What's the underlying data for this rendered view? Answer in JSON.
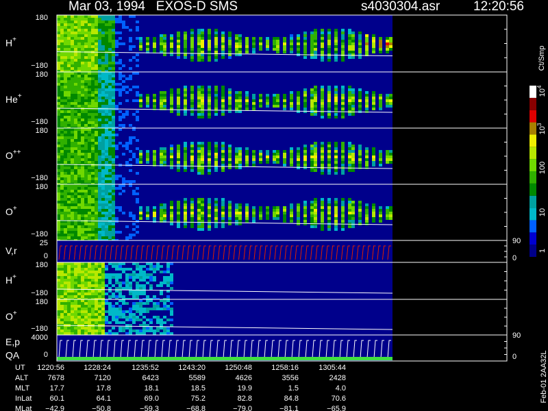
{
  "header": {
    "title": "Mar 03, 1994   EXOS-D SMS",
    "file": "s4030304.asr",
    "time": "12:20:56"
  },
  "panels": [
    {
      "label": "H",
      "sup": "+",
      "top": "180",
      "bottom": "−180"
    },
    {
      "label": "He",
      "sup": "+",
      "top": "180",
      "bottom": "−180"
    },
    {
      "label": "O",
      "sup": "++",
      "top": "180",
      "bottom": "−180"
    },
    {
      "label": "O",
      "sup": "+",
      "top": "180",
      "bottom": "−180"
    },
    {
      "label": "V,r",
      "top": "25",
      "bottom": "0",
      "right_top": "90",
      "right_bottom": "0"
    },
    {
      "label": "H",
      "sup": "+",
      "top": "180",
      "bottom": "−180"
    },
    {
      "label": "O",
      "sup": "+",
      "top": "180",
      "bottom": "−180"
    },
    {
      "label": "E,p",
      "label2": "QA",
      "top": "4000",
      "bottom": "0",
      "right_top": "90",
      "right_bottom": "0"
    }
  ],
  "colorbar": {
    "unit": "Ct/Smp",
    "labels": [
      {
        "text": "10",
        "sup": "4"
      },
      {
        "text": "10",
        "sup": "3"
      },
      {
        "text": "100"
      },
      {
        "text": "10"
      },
      {
        "text": "1"
      }
    ]
  },
  "table": {
    "rows": [
      [
        "UT",
        "1220:56",
        "1228:24",
        "1235:52",
        "1243:20",
        "1250:48",
        "1258:16",
        "1305:44"
      ],
      [
        "ALT",
        "7678",
        "7120",
        "6423",
        "5589",
        "4626",
        "3556",
        "2428"
      ],
      [
        "MLT",
        "17.7",
        "17.8",
        "18.1",
        "18.5",
        "19.9",
        "1.5",
        "4.0"
      ],
      [
        "InLat",
        "60.1",
        "64.1",
        "69.0",
        "75.2",
        "82.8",
        "84.8",
        "70.6"
      ],
      [
        "MLat",
        "−42.9",
        "−50.8",
        "−59.3",
        "−68.8",
        "−79.0",
        "−81.1",
        "−65.9"
      ]
    ]
  },
  "footer": "Feb-01 2AA32L"
}
